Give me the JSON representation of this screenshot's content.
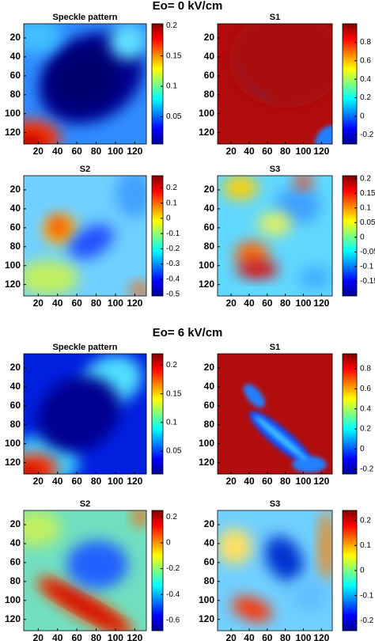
{
  "sections": [
    {
      "title": "Eo= 0 kV/cm"
    },
    {
      "title": "Eo= 6 kV/cm"
    }
  ],
  "chart_data": [
    {
      "type": "heatmap",
      "title": "Speckle pattern",
      "xlim": [
        5,
        132
      ],
      "ylim": [
        5,
        132
      ],
      "xticks": [
        20,
        40,
        60,
        80,
        100,
        120
      ],
      "yticks": [
        20,
        40,
        60,
        80,
        100,
        120
      ],
      "clim": [
        0.005,
        0.203
      ],
      "cticks": [
        0.2,
        0.15,
        0.1,
        0.05
      ]
    },
    {
      "type": "heatmap",
      "title": "S1",
      "xlim": [
        5,
        132
      ],
      "ylim": [
        5,
        132
      ],
      "xticks": [
        20,
        40,
        60,
        80,
        100,
        120
      ],
      "yticks": [
        20,
        40,
        60,
        80,
        100,
        120
      ],
      "clim": [
        -0.3,
        1.0
      ],
      "cticks": [
        0.8,
        0.6,
        0.4,
        0.2,
        0,
        -0.2
      ]
    },
    {
      "type": "heatmap",
      "title": "S2",
      "xlim": [
        5,
        132
      ],
      "ylim": [
        5,
        132
      ],
      "xticks": [
        20,
        40,
        60,
        80,
        100,
        120
      ],
      "yticks": [
        20,
        40,
        60,
        80,
        100,
        120
      ],
      "clim": [
        -0.51,
        0.28
      ],
      "cticks": [
        0.2,
        0.1,
        0,
        -0.1,
        -0.2,
        -0.3,
        -0.4,
        -0.5
      ]
    },
    {
      "type": "heatmap",
      "title": "S3",
      "xlim": [
        5,
        132
      ],
      "ylim": [
        5,
        132
      ],
      "xticks": [
        20,
        40,
        60,
        80,
        100,
        120
      ],
      "yticks": [
        20,
        40,
        60,
        80,
        100,
        120
      ],
      "clim": [
        -0.2,
        0.21
      ],
      "cticks": [
        0.2,
        0.15,
        0.1,
        0.05,
        0,
        -0.05,
        -0.1,
        -0.15
      ]
    },
    {
      "type": "heatmap",
      "title": "Speckle pattern",
      "xlim": [
        5,
        132
      ],
      "ylim": [
        5,
        132
      ],
      "xticks": [
        20,
        40,
        60,
        80,
        100,
        120
      ],
      "yticks": [
        20,
        40,
        60,
        80,
        100,
        120
      ],
      "clim": [
        0.01,
        0.22
      ],
      "cticks": [
        0.2,
        0.15,
        0.1,
        0.05
      ]
    },
    {
      "type": "heatmap",
      "title": "S1",
      "xlim": [
        5,
        132
      ],
      "ylim": [
        5,
        132
      ],
      "xticks": [
        20,
        40,
        60,
        80,
        100,
        120
      ],
      "yticks": [
        20,
        40,
        60,
        80,
        100,
        120
      ],
      "clim": [
        -0.25,
        0.95
      ],
      "cticks": [
        0.8,
        0.6,
        0.4,
        0.2,
        0,
        -0.2
      ]
    },
    {
      "type": "heatmap",
      "title": "S2",
      "xlim": [
        5,
        132
      ],
      "ylim": [
        5,
        132
      ],
      "xticks": [
        20,
        40,
        60,
        80,
        100,
        120
      ],
      "yticks": [
        20,
        40,
        60,
        80,
        100,
        120
      ],
      "clim": [
        -0.68,
        0.25
      ],
      "cticks": [
        0.2,
        0,
        -0.2,
        -0.4,
        -0.6
      ]
    },
    {
      "type": "heatmap",
      "title": "S3",
      "xlim": [
        5,
        132
      ],
      "ylim": [
        5,
        132
      ],
      "xticks": [
        20,
        40,
        60,
        80,
        100,
        120
      ],
      "yticks": [
        20,
        40,
        60,
        80,
        100,
        120
      ],
      "clim": [
        -0.24,
        0.24
      ],
      "cticks": [
        0.2,
        0.1,
        0,
        -0.1,
        -0.2
      ]
    }
  ]
}
